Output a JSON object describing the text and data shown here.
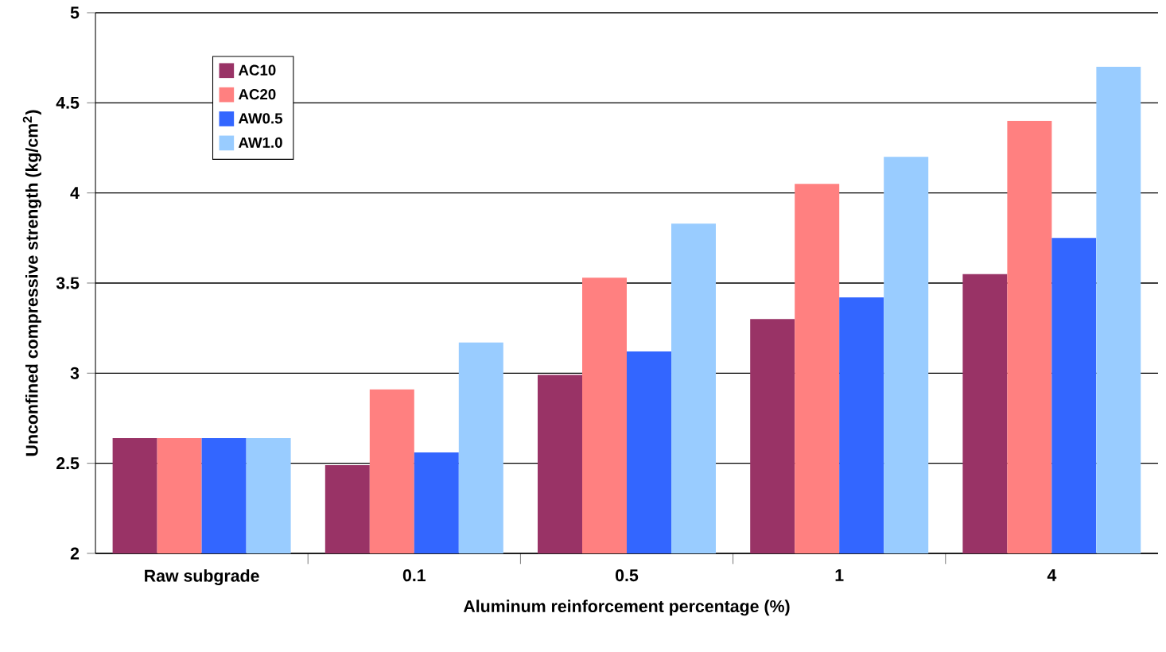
{
  "chart_data": {
    "type": "bar",
    "xlabel": "Aluminum reinforcement percentage (%)",
    "ylabel": "Unconfined compressive strength (kg/cm$^{2}$)",
    "categories": [
      "Raw subgrade",
      "0.1",
      "0.5",
      "1",
      "4"
    ],
    "series": [
      {
        "name": "AC10",
        "color": "#993366",
        "values": [
          2.64,
          2.49,
          2.99,
          3.3,
          3.55
        ]
      },
      {
        "name": "AC20",
        "color": "#ff8080",
        "values": [
          2.64,
          2.91,
          3.53,
          4.05,
          4.4
        ]
      },
      {
        "name": "AW0.5",
        "color": "#3366ff",
        "values": [
          2.64,
          2.56,
          3.12,
          3.42,
          3.75
        ]
      },
      {
        "name": "AW1.0",
        "color": "#99ccff",
        "values": [
          2.64,
          3.17,
          3.83,
          4.2,
          4.7
        ]
      }
    ],
    "ylim": [
      2,
      5
    ],
    "yticks": [
      2,
      2.5,
      3,
      3.5,
      4,
      4.5,
      5
    ],
    "grid": "y",
    "legend": "top left"
  }
}
